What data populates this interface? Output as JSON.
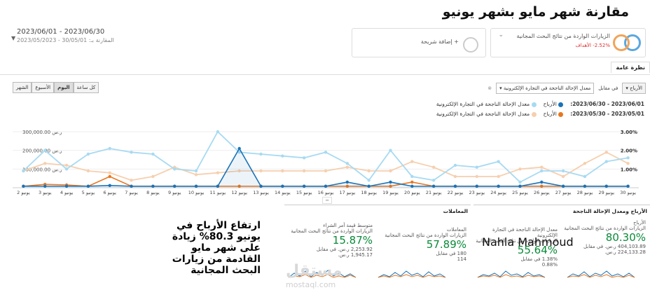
{
  "title": "مقارنة شهر مايو بشهر يونيو",
  "date_range": {
    "primary": "2023/06/01 - 2023/06/30",
    "compare_label": "المقارنة بـ:",
    "compare": "30/05/01 - 2023/05/2023"
  },
  "metric_card": {
    "label": "الزيارات الواردة من نتائج البحث المجانية",
    "change": "2.52%-",
    "change_suffix": "الأهداف"
  },
  "add_comparison": "+ إضافة شريحة",
  "tab_label": "نظرة عامة",
  "controls": {
    "metric_select": "الأرباح",
    "vs": "في مقابل",
    "metric2_select": "معدل الإحالة الناجحة في التجارة الإلكترونية"
  },
  "time_buttons": [
    "كل ساعة",
    "اليوم",
    "الأسبوع",
    "الشهر"
  ],
  "legend": {
    "row1_period": "2023/06/01 - 2023/06/30:",
    "row2_period": "2023/05/01 - 2023/05/30:",
    "earnings": "الأرباح",
    "rate": "معدل الإحالة الناجحة في التجارة الإلكترونية"
  },
  "colors": {
    "june_earnings": "#1a73b8",
    "june_rate": "#a7daf2",
    "may_earnings": "#e8761f",
    "may_rate": "#f6cfae",
    "green": "#0a8a38"
  },
  "chart_data": {
    "type": "line",
    "x": [
      "2 يونيو",
      "3 يونيو",
      "4 يونيو",
      "5 يونيو",
      "6 يونيو",
      "7 يونيو",
      "8 يونيو",
      "9 يونيو",
      "10 يونيو",
      "11 يونيو",
      "12 يونيو",
      "13 يونيو",
      "14 يونيو",
      "15 يونيو",
      "16 يونيو",
      "17 يونيو",
      "18 يونيو",
      "19 يونيو",
      "20 يونيو",
      "21 يونيو",
      "22 يونيو",
      "23 يونيو",
      "24 يونيو",
      "25 يونيو",
      "26 يونيو",
      "27 يونيو",
      "28 يونيو",
      "29 يونيو",
      "30 يونيو"
    ],
    "left_axis": [
      "300,000.00 ر.س",
      "200,000.00 ر.س",
      "100,000.00 ر.س"
    ],
    "right_axis": [
      "3.00%",
      "2.00%",
      "1.00%"
    ],
    "left_ylim": [
      0,
      330000
    ],
    "right_ylim": [
      0,
      3.3
    ],
    "series": [
      {
        "name": "الأرباح (يونيو)",
        "axis": "left",
        "values": [
          8000,
          8000,
          8000,
          8000,
          12000,
          8000,
          8000,
          8000,
          8000,
          8000,
          210000,
          8000,
          8000,
          8000,
          8000,
          30000,
          8000,
          30000,
          8000,
          8000,
          8000,
          8000,
          8000,
          8000,
          30000,
          8000,
          8000,
          8000,
          8000
        ]
      },
      {
        "name": "معدل الإحالة (يونيو)",
        "axis": "right",
        "values": [
          0.9,
          2.0,
          1.0,
          1.8,
          2.1,
          1.9,
          1.8,
          1.0,
          0.9,
          3.0,
          1.9,
          1.8,
          1.7,
          1.6,
          1.9,
          1.3,
          0.4,
          2.0,
          0.6,
          0.4,
          1.2,
          1.1,
          1.4,
          0.3,
          0.9,
          0.9,
          0.6,
          1.4,
          1.6
        ]
      },
      {
        "name": "الأرباح (مايو)",
        "axis": "left",
        "values": [
          8000,
          18000,
          15000,
          8000,
          60000,
          8000,
          8000,
          8000,
          8000,
          8000,
          8000,
          8000,
          8000,
          8000,
          8000,
          8000,
          8000,
          8000,
          30000,
          8000,
          8000,
          8000,
          8000,
          8000,
          8000,
          8000,
          8000,
          8000,
          8000
        ]
      },
      {
        "name": "معدل الإحالة (مايو)",
        "axis": "right",
        "values": [
          0.9,
          1.3,
          1.2,
          0.9,
          0.8,
          0.4,
          0.6,
          1.1,
          0.7,
          0.8,
          0.9,
          0.9,
          0.9,
          0.9,
          0.9,
          1.1,
          0.9,
          0.9,
          1.4,
          1.1,
          0.6,
          0.6,
          0.6,
          1.0,
          1.1,
          0.6,
          1.3,
          1.9,
          1.3
        ]
      }
    ]
  },
  "bottom": {
    "section1_title": "الأرباح ومعدل الإحالة الناجحة",
    "section2_title": "المعاملات",
    "cards": [
      {
        "title": "الأرباح",
        "subtitle": "الزيارات الواردة من نتائج البحث المجانية",
        "pct": "80.30%",
        "line1": "404,103.89 ر.س. في مقابل",
        "line2": "224,133.28 ر.س."
      },
      {
        "title": "معدل الإحالة الناجحة في التجارة الإلكترونية",
        "subtitle": "الزيارات الواردة من نتائج البحث المجانية",
        "pct": "55.64%",
        "line1": "1.38% في مقابل",
        "line2": "0.88%"
      },
      {
        "title": "المعاملات",
        "subtitle": "الزيارات الواردة من نتائج البحث المجانية",
        "pct": "57.89%",
        "line1": "180 في مقابل",
        "line2": "114"
      },
      {
        "title": "متوسط قيمة أمر الشراء",
        "subtitle": "الزيارات الواردة من نتائج البحث المجانية",
        "pct": "15.87%",
        "line1": "2,253.92 ر.س. في مقابل",
        "line2": "1,945.17 ر.س."
      }
    ]
  },
  "note": "ارتفاع الأرباح في يونيو 80.3% زيادة على شهر مايو القادمة من زيارات البحث المجانية",
  "author": "Nahla Mahmoud",
  "watermark": "مستقل",
  "watermark_url": "mostaql.com"
}
